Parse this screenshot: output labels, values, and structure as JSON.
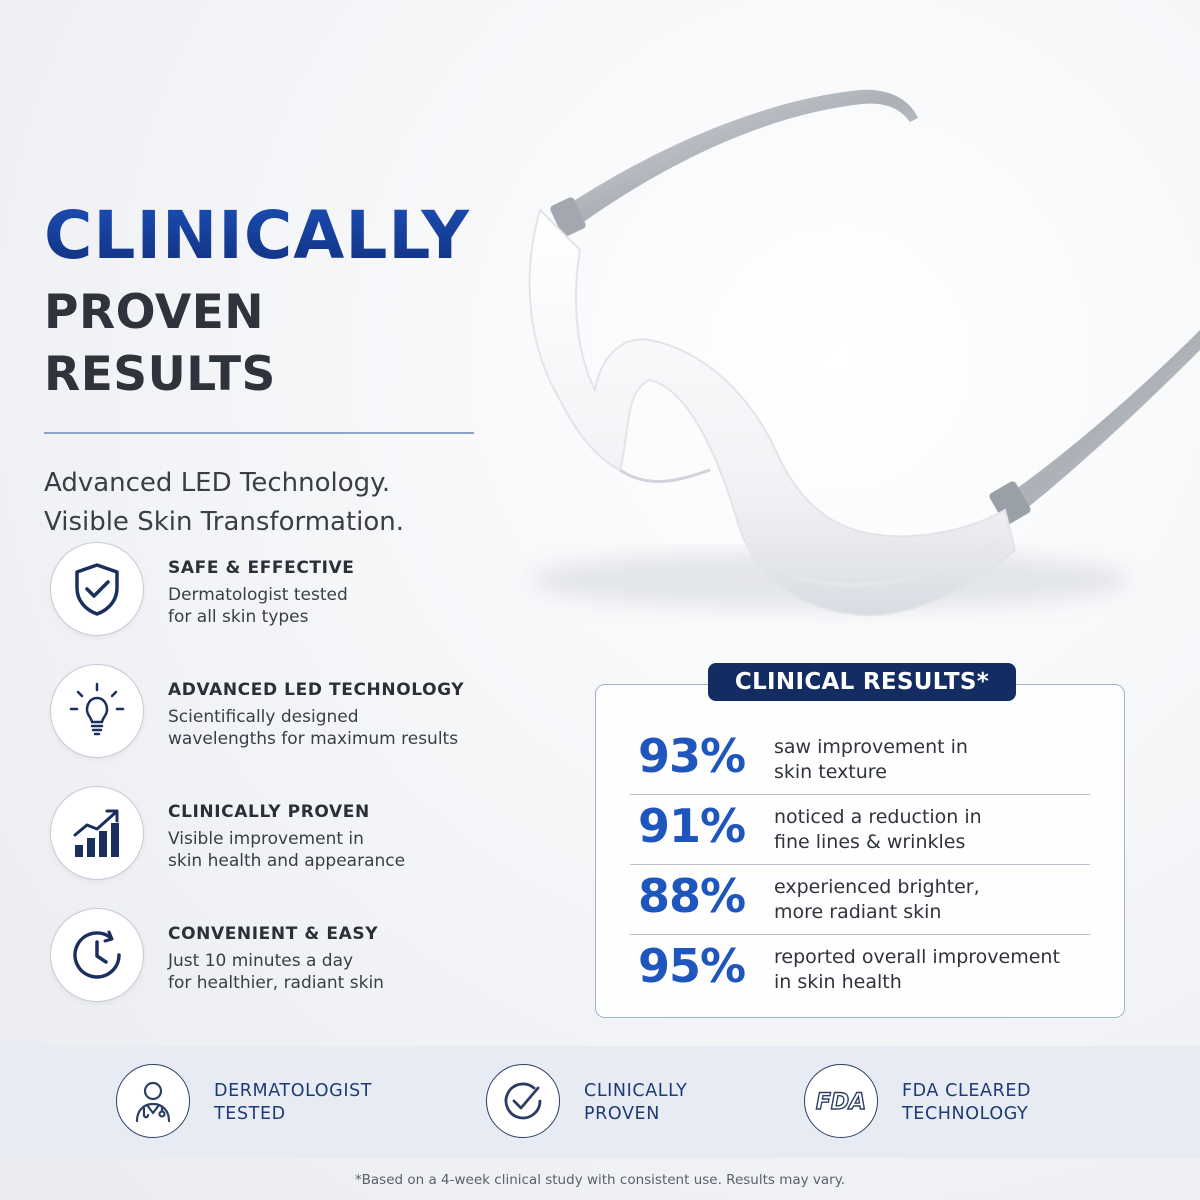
{
  "headline": {
    "line1": "CLINICALLY",
    "line2": "PROVEN RESULTS",
    "sub1": "Advanced LED Technology.",
    "sub2": "Visible Skin Transformation."
  },
  "features": [
    {
      "title": "SAFE & EFFECTIVE",
      "desc1": "Dermatologist tested",
      "desc2": "for all skin types",
      "icon": "shield-check-icon"
    },
    {
      "title": "ADVANCED LED TECHNOLOGY",
      "desc1": "Scientifically designed",
      "desc2": "wavelengths for maximum results",
      "icon": "lightbulb-icon"
    },
    {
      "title": "CLINICALLY PROVEN",
      "desc1": "Visible improvement in",
      "desc2": "skin health and appearance",
      "icon": "growth-chart-icon"
    },
    {
      "title": "CONVENIENT & EASY",
      "desc1": "Just 10 minutes a day",
      "desc2": "for healthier, radiant skin",
      "icon": "clock-icon"
    }
  ],
  "results": {
    "title": "CLINICAL RESULTS*",
    "rows": [
      {
        "pct": "93%",
        "line1": "saw improvement in",
        "line2": "skin texture"
      },
      {
        "pct": "91%",
        "line1": "noticed a reduction in",
        "line2": "fine lines & wrinkles"
      },
      {
        "pct": "88%",
        "line1": "experienced brighter,",
        "line2": "more radiant skin"
      },
      {
        "pct": "95%",
        "line1": "reported overall improvement",
        "line2": "in skin health"
      }
    ]
  },
  "badges": [
    {
      "line1": "DERMATOLOGIST",
      "line2": "TESTED",
      "icon": "doctor-icon"
    },
    {
      "line1": "CLINICALLY",
      "line2": "PROVEN",
      "icon": "check-circle-icon"
    },
    {
      "line1": "FDA CLEARED",
      "line2": "TECHNOLOGY",
      "icon": "fda-logo",
      "logo_text": "FDA"
    }
  ],
  "footnote": "*Based on a 4-week clinical study with consistent use. Results may vary.",
  "colors": {
    "primary": "#1f56bd",
    "navy": "#132d63",
    "text": "#2b2f38",
    "band": "#e6ebf4"
  }
}
